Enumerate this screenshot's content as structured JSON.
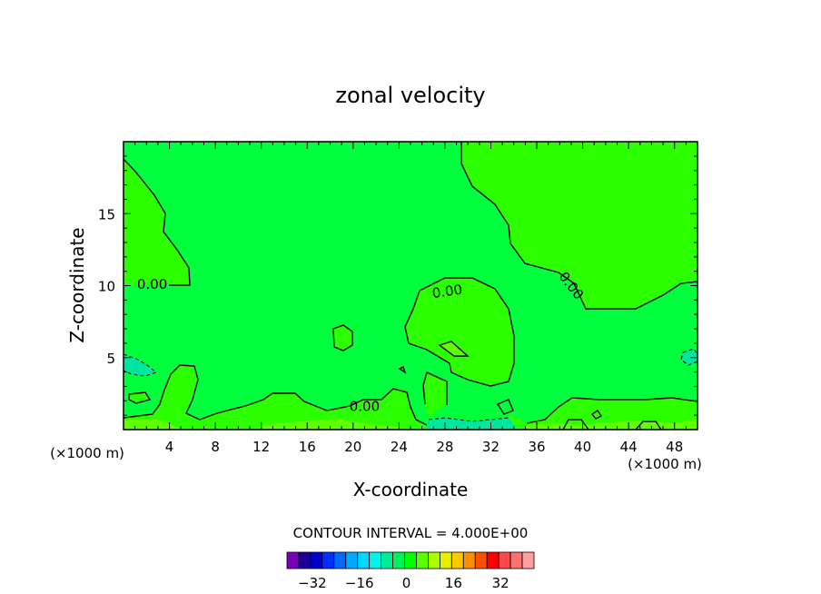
{
  "chart_data": {
    "type": "contour",
    "title": "zonal velocity",
    "xlabel": "X-coordinate",
    "ylabel": "Z-coordinate",
    "x_unit_left": "(×1000 m)",
    "x_unit_right": "(×1000 m)",
    "xlim": [
      0,
      50
    ],
    "ylim": [
      0,
      20
    ],
    "x_ticks": [
      4,
      8,
      12,
      16,
      20,
      24,
      28,
      32,
      36,
      40,
      44,
      48
    ],
    "y_ticks": [
      5,
      10,
      15
    ],
    "contour_labels": [
      {
        "text": "0.00",
        "x": 2.5,
        "y": 10.1,
        "rotate": 0
      },
      {
        "text": "0.00",
        "x": 28.2,
        "y": 9.6,
        "rotate": -8
      },
      {
        "text": "0.00",
        "x": 39.0,
        "y": 10.0,
        "rotate": 52
      },
      {
        "text": "0.00",
        "x": 21.0,
        "y": 1.6,
        "rotate": 0
      }
    ],
    "contour_interval_text": "CONTOUR INTERVAL = 4.000E+00",
    "colorbar": {
      "colors": [
        "#7a00b8",
        "#1c0096",
        "#0000ce",
        "#0030ff",
        "#0068ff",
        "#00a8ff",
        "#00d6ff",
        "#00f4e8",
        "#00ec9a",
        "#00f25a",
        "#00ff00",
        "#58ff00",
        "#a8ff00",
        "#e8f000",
        "#ffc800",
        "#ff9000",
        "#ff5000",
        "#ff0000",
        "#ff4848",
        "#ff7070",
        "#ff9e9e"
      ],
      "tick_labels": [
        "-32",
        "-16",
        "0",
        "16",
        "32"
      ],
      "tick_values": [
        -32,
        -16,
        0,
        16,
        32
      ],
      "vmin": -40,
      "vmax": 44
    }
  }
}
